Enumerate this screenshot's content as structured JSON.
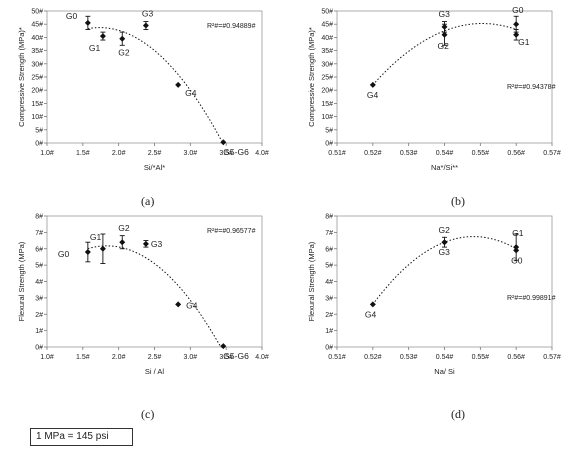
{
  "chart_data": [
    {
      "type": "scatter",
      "panel": "(a)",
      "xlabel": "Si/*Al*",
      "ylabel": "Compressive Strength (MPa)*",
      "xlim": [
        1.0,
        4.0
      ],
      "ylim": [
        0,
        50
      ],
      "xticks": [
        "1.0#",
        "1.5#",
        "2.0#",
        "2.5#",
        "3.0#",
        "3.5#",
        "4.0#"
      ],
      "yticks": [
        "0#",
        "5#",
        "10#",
        "15#",
        "20#",
        "25#",
        "30#",
        "35#",
        "40#",
        "45#",
        "50#"
      ],
      "r2": "R²#=#0.94889#",
      "trendline": "dotted",
      "points": [
        {
          "label": "G0",
          "x": 1.57,
          "y": 45.5,
          "err": 2.5
        },
        {
          "label": "G1",
          "x": 1.78,
          "y": 40.5,
          "err": 1.5
        },
        {
          "label": "G2",
          "x": 2.05,
          "y": 39.5,
          "err": 2.5
        },
        {
          "label": "G3",
          "x": 2.38,
          "y": 44.5,
          "err": 1.5
        },
        {
          "label": "G4",
          "x": 2.83,
          "y": 22.0,
          "err": 0
        },
        {
          "label": "G5-G6",
          "x": 3.46,
          "y": 0.3,
          "err": 0
        }
      ]
    },
    {
      "type": "scatter",
      "panel": "(b)",
      "xlabel": "Na*/Si**",
      "ylabel": "Compressive Strength (MPa)*",
      "xlim": [
        0.51,
        0.57
      ],
      "ylim": [
        0,
        50
      ],
      "xticks": [
        "0.51#",
        "0.52#",
        "0.53#",
        "0.54#",
        "0.55#",
        "0.56#",
        "0.57#"
      ],
      "yticks": [
        "0#",
        "5#",
        "10#",
        "15#",
        "20#",
        "25#",
        "30#",
        "35#",
        "40#",
        "45#",
        "50#"
      ],
      "r2": "R²#=#0.94378#",
      "trendline": "dotted",
      "points": [
        {
          "label": "G4",
          "x": 0.52,
          "y": 22.0,
          "err": 0
        },
        {
          "label": "G2",
          "x": 0.54,
          "y": 41.0,
          "err": 4
        },
        {
          "label": "G3",
          "x": 0.54,
          "y": 44.0,
          "err": 2
        },
        {
          "label": "G0",
          "x": 0.56,
          "y": 45.0,
          "err": 3
        },
        {
          "label": "G1",
          "x": 0.56,
          "y": 41.0,
          "err": 2
        }
      ]
    },
    {
      "type": "scatter",
      "panel": "(c)",
      "xlabel": "Si / Al",
      "ylabel": "Flexural Strength (MPa)",
      "xlim": [
        1.0,
        4.0
      ],
      "ylim": [
        0,
        8
      ],
      "xticks": [
        "1.0#",
        "1.5#",
        "2.0#",
        "2.5#",
        "3.0#",
        "3.5#",
        "4.0#"
      ],
      "yticks": [
        "0#",
        "1#",
        "2#",
        "3#",
        "4#",
        "5#",
        "6#",
        "7#",
        "8#"
      ],
      "r2": "R²#=#0.96577#",
      "trendline": "dotted",
      "points": [
        {
          "label": "G0",
          "x": 1.57,
          "y": 5.8,
          "err": 0.6
        },
        {
          "label": "G1",
          "x": 1.78,
          "y": 6.0,
          "err": 0.9
        },
        {
          "label": "G2",
          "x": 2.05,
          "y": 6.4,
          "err": 0.4
        },
        {
          "label": "G3",
          "x": 2.38,
          "y": 6.3,
          "err": 0.2
        },
        {
          "label": "G4",
          "x": 2.83,
          "y": 2.6,
          "err": 0
        },
        {
          "label": "G5-G6",
          "x": 3.46,
          "y": 0.05,
          "err": 0
        }
      ]
    },
    {
      "type": "scatter",
      "panel": "(d)",
      "xlabel": "Na/ Si",
      "ylabel": "Flexural Strength (MPa)",
      "xlim": [
        0.51,
        0.57
      ],
      "ylim": [
        0,
        8
      ],
      "xticks": [
        "0.51#",
        "0.52#",
        "0.53#",
        "0.54#",
        "0.55#",
        "0.56#",
        "0.57#"
      ],
      "yticks": [
        "0#",
        "1#",
        "2#",
        "3#",
        "4#",
        "5#",
        "6#",
        "7#",
        "8#"
      ],
      "r2": "R²#=#0.99891#",
      "trendline": "dotted",
      "points": [
        {
          "label": "G4",
          "x": 0.52,
          "y": 2.6,
          "err": 0
        },
        {
          "label": "G3",
          "x": 0.54,
          "y": 6.4,
          "err": 0.3
        },
        {
          "label": "G2",
          "x": 0.54,
          "y": 6.4,
          "err": 0
        },
        {
          "label": "G1",
          "x": 0.56,
          "y": 6.1,
          "err": 0.8
        },
        {
          "label": "G0",
          "x": 0.56,
          "y": 5.9,
          "err": 0
        }
      ]
    }
  ],
  "captions": [
    "(a)",
    "(b)",
    "(c)",
    "(d)"
  ],
  "note": "1 MPa = 145 psi"
}
